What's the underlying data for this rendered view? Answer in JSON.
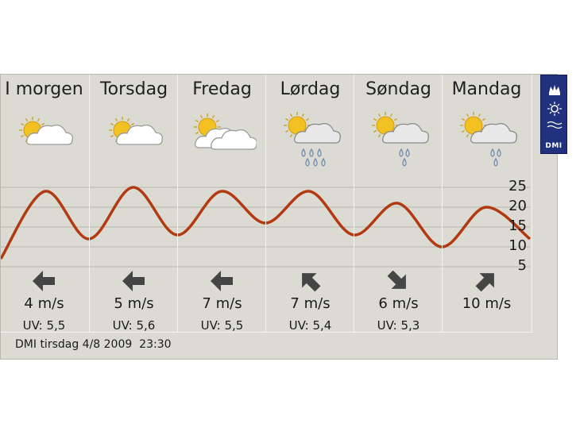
{
  "days": [
    {
      "name": "I morgen",
      "icon": "sun-cloud-icon",
      "wind": "4 m/s",
      "uv": "UV: 5,5",
      "arrow": "wind-west-arrow-icon",
      "arrow_dir": "W"
    },
    {
      "name": "Torsdag",
      "icon": "sun-cloud-icon",
      "wind": "5 m/s",
      "uv": "UV: 5,6",
      "arrow": "wind-west-arrow-icon",
      "arrow_dir": "W"
    },
    {
      "name": "Fredag",
      "icon": "sun-clouds-icon",
      "wind": "7 m/s",
      "uv": "UV: 5,5",
      "arrow": "wind-west-arrow-icon",
      "arrow_dir": "W"
    },
    {
      "name": "Lørdag",
      "icon": "sun-rain-cloud-icon",
      "wind": "7 m/s",
      "uv": "UV: 5,4",
      "arrow": "wind-northwest-arrow-icon",
      "arrow_dir": "NW"
    },
    {
      "name": "Søndag",
      "icon": "sun-rain-cloud-icon",
      "wind": "6 m/s",
      "uv": "UV: 5,3",
      "arrow": "wind-southeast-arrow-icon",
      "arrow_dir": "SE"
    },
    {
      "name": "Mandag",
      "icon": "sun-rain-cloud-icon",
      "wind": "10 m/s",
      "uv": "",
      "arrow": "wind-northeast-arrow-icon",
      "arrow_dir": "NE"
    }
  ],
  "footer": "DMI tirsdag 4/8 2009  23:30",
  "logo_text": "DMI",
  "colors": {
    "curve": "#b33a10",
    "background": "#dcdbd3",
    "logo": "#22317d",
    "arrow": "#454545"
  },
  "chart_data": {
    "type": "line",
    "ylabel": "",
    "yticks": [
      "25",
      "20",
      "15",
      "10",
      "5"
    ],
    "ylim": [
      5,
      25
    ],
    "grid": true,
    "x": [
      0.0,
      0.5,
      1.0,
      1.5,
      2.0,
      2.5,
      3.0,
      3.5,
      4.0,
      4.5,
      5.0,
      5.5,
      6.0
    ],
    "series": [
      {
        "values": [
          7,
          24,
          12,
          25,
          13,
          24,
          16,
          24,
          13,
          21,
          10,
          20,
          12
        ]
      }
    ]
  }
}
